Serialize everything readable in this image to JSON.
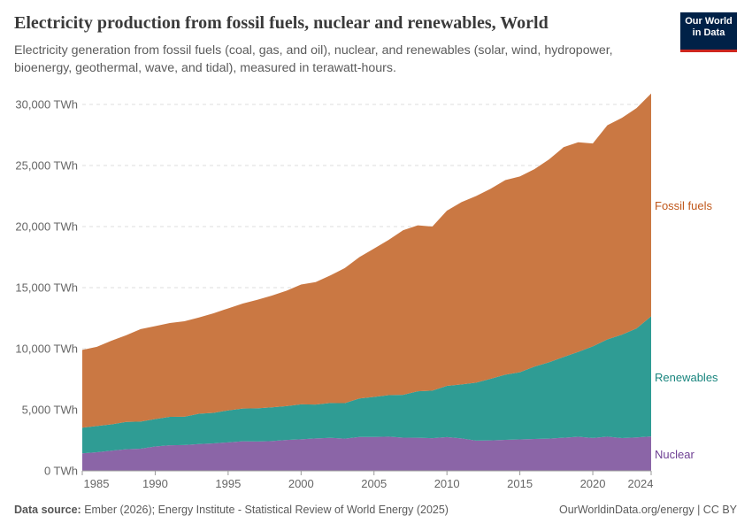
{
  "header": {
    "title": "Electricity production from fossil fuels, nuclear and renewables, World",
    "subtitle": "Electricity generation from fossil fuels (coal, gas, and oil), nuclear, and renewables (solar, wind, hydropower, bioenergy, geothermal, wave, and tidal), measured in terawatt-hours.",
    "logo_text": "Our World in Data",
    "logo_line1": "Our World",
    "logo_line2": "in Data"
  },
  "footer": {
    "source_label": "Data source:",
    "source_text": "Ember (2026); Energy Institute - Statistical Review of World Energy (2025)",
    "credit": "OurWorldinData.org/energy | CC BY"
  },
  "colors": {
    "fossil": "#CA7843",
    "renewables": "#2F9C94",
    "nuclear": "#8B65A7",
    "fossil_label": "#C0581C",
    "renewables_label": "#19857E",
    "nuclear_label": "#6E3F93"
  },
  "chart_data": {
    "type": "area",
    "stacked": true,
    "ylim": [
      0,
      30000
    ],
    "yticks": [
      0,
      5000,
      10000,
      15000,
      20000,
      25000,
      30000
    ],
    "ytick_labels": [
      "0 TWh",
      "5,000 TWh",
      "10,000 TWh",
      "15,000 TWh",
      "20,000 TWh",
      "25,000 TWh",
      "30,000 TWh"
    ],
    "xticks": [
      1985,
      1990,
      1995,
      2000,
      2005,
      2010,
      2015,
      2020,
      2024
    ],
    "xtick_labels": [
      "1985",
      "1990",
      "1995",
      "2000",
      "2005",
      "2010",
      "2015",
      "2020",
      "2024"
    ],
    "grid": "horizontal dashed",
    "legend": "inline-right",
    "x": [
      1985,
      1986,
      1987,
      1988,
      1989,
      1990,
      1991,
      1992,
      1993,
      1994,
      1995,
      1996,
      1997,
      1998,
      1999,
      2000,
      2001,
      2002,
      2003,
      2004,
      2005,
      2006,
      2007,
      2008,
      2009,
      2010,
      2011,
      2012,
      2013,
      2014,
      2015,
      2016,
      2017,
      2018,
      2019,
      2020,
      2021,
      2022,
      2023,
      2024
    ],
    "series": [
      {
        "name": "Nuclear",
        "values": [
          1430,
          1520,
          1650,
          1770,
          1810,
          1990,
          2090,
          2110,
          2190,
          2250,
          2330,
          2420,
          2400,
          2440,
          2530,
          2580,
          2650,
          2700,
          2640,
          2770,
          2770,
          2800,
          2720,
          2710,
          2670,
          2760,
          2650,
          2470,
          2490,
          2540,
          2570,
          2610,
          2640,
          2710,
          2790,
          2690,
          2800,
          2680,
          2740,
          2820
        ]
      },
      {
        "name": "Renewables",
        "values": [
          2100,
          2150,
          2150,
          2230,
          2220,
          2250,
          2330,
          2320,
          2480,
          2500,
          2620,
          2680,
          2720,
          2760,
          2770,
          2860,
          2780,
          2850,
          2900,
          3150,
          3280,
          3400,
          3500,
          3800,
          3900,
          4200,
          4420,
          4750,
          5050,
          5330,
          5500,
          5920,
          6250,
          6610,
          6950,
          7500,
          7960,
          8470,
          8920,
          9830
        ]
      },
      {
        "name": "Fossil fuels",
        "values": [
          6370,
          6480,
          6850,
          7100,
          7570,
          7610,
          7680,
          7820,
          7880,
          8150,
          8350,
          8600,
          8880,
          9150,
          9450,
          9810,
          10020,
          10450,
          11060,
          11580,
          12150,
          12700,
          13480,
          13590,
          13430,
          14340,
          14930,
          15280,
          15560,
          15930,
          16030,
          16170,
          16610,
          17180,
          17160,
          16610,
          17540,
          17750,
          18040,
          18250
        ]
      }
    ]
  }
}
